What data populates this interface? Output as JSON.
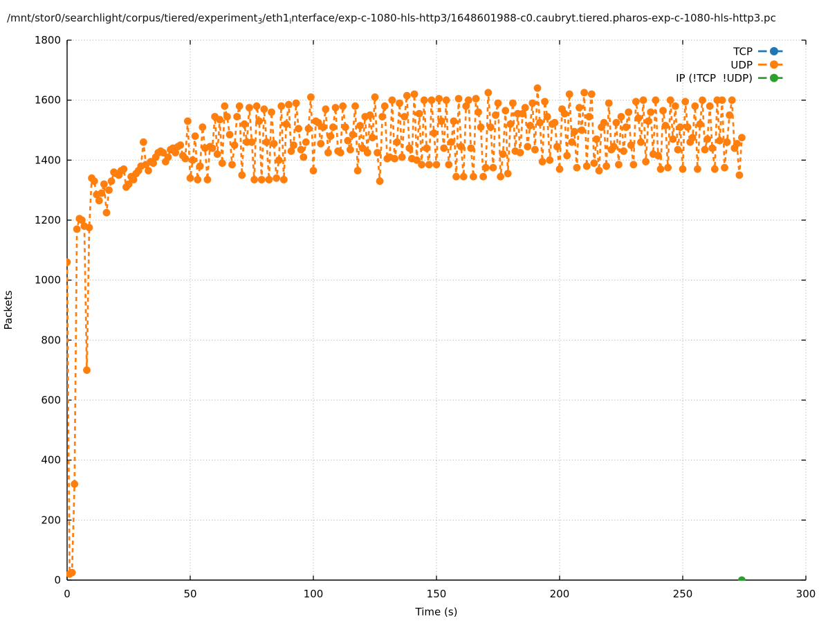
{
  "title": {
    "seg1": "/mnt/stor0/searchlight/corpus/tiered/experiment",
    "sub1": "3",
    "seg2": "/eth1",
    "sub2": "i",
    "seg3": "nterface/exp-c-1080-hls-http3/1648601988-c0.caubryt.tiered.pharos-exp-c-1080-hls-http3.pc"
  },
  "axes": {
    "xlabel": "Time (s)",
    "ylabel": "Packets",
    "xlim": [
      0,
      300
    ],
    "ylim": [
      0,
      1800
    ],
    "x_ticks": [
      0,
      50,
      100,
      150,
      200,
      250,
      300
    ],
    "y_ticks": [
      0,
      200,
      400,
      600,
      800,
      1000,
      1200,
      1400,
      1600,
      1800
    ]
  },
  "legend": [
    {
      "label": "TCP",
      "color": "#1f77b4"
    },
    {
      "label": "UDP",
      "color": "#ff7f0e"
    },
    {
      "label": "IP (!TCP  !UDP)",
      "color": "#2ca02c"
    }
  ],
  "chart_data": {
    "type": "line",
    "title": "/mnt/stor0/searchlight/corpus/tiered/experiment3/eth1interface/exp-c-1080-hls-http3/1648601988-c0.caubryt.tiered.pharos-exp-c-1080-hls-http3.pc",
    "xlabel": "Time (s)",
    "ylabel": "Packets",
    "xlim": [
      0,
      300
    ],
    "ylim": [
      0,
      1800
    ],
    "grid": true,
    "legend_position": "top-right",
    "marker": "circle",
    "linestyle": "dashed",
    "series": [
      {
        "name": "TCP",
        "color": "#1f77b4",
        "x_start": 0,
        "x_step": 1,
        "y": []
      },
      {
        "name": "UDP",
        "color": "#ff7f0e",
        "x_start": 0,
        "x_step": 1,
        "y": [
          1060,
          20,
          25,
          320,
          1170,
          1205,
          1200,
          1180,
          700,
          1175,
          1340,
          1330,
          1285,
          1265,
          1290,
          1320,
          1225,
          1300,
          1330,
          1360,
          1355,
          1350,
          1365,
          1370,
          1310,
          1320,
          1345,
          1335,
          1355,
          1365,
          1380,
          1460,
          1385,
          1365,
          1395,
          1390,
          1410,
          1425,
          1430,
          1425,
          1395,
          1410,
          1435,
          1440,
          1425,
          1445,
          1450,
          1415,
          1405,
          1530,
          1340,
          1400,
          1480,
          1335,
          1380,
          1510,
          1440,
          1335,
          1445,
          1440,
          1545,
          1420,
          1535,
          1390,
          1580,
          1545,
          1485,
          1385,
          1450,
          1545,
          1580,
          1350,
          1520,
          1460,
          1575,
          1460,
          1335,
          1580,
          1530,
          1335,
          1570,
          1460,
          1335,
          1560,
          1455,
          1340,
          1400,
          1580,
          1335,
          1520,
          1585,
          1430,
          1450,
          1590,
          1505,
          1435,
          1410,
          1460,
          1505,
          1610,
          1365,
          1530,
          1525,
          1455,
          1510,
          1570,
          1425,
          1480,
          1510,
          1575,
          1430,
          1425,
          1580,
          1510,
          1465,
          1435,
          1485,
          1580,
          1365,
          1515,
          1440,
          1545,
          1425,
          1550,
          1475,
          1610,
          1425,
          1330,
          1545,
          1580,
          1405,
          1410,
          1600,
          1405,
          1460,
          1590,
          1410,
          1545,
          1615,
          1440,
          1405,
          1620,
          1400,
          1555,
          1385,
          1600,
          1440,
          1385,
          1600,
          1490,
          1385,
          1605,
          1530,
          1440,
          1600,
          1385,
          1460,
          1530,
          1345,
          1605,
          1445,
          1345,
          1580,
          1600,
          1440,
          1345,
          1605,
          1560,
          1510,
          1345,
          1375,
          1625,
          1510,
          1375,
          1550,
          1590,
          1345,
          1420,
          1565,
          1355,
          1520,
          1590,
          1430,
          1555,
          1425,
          1555,
          1575,
          1445,
          1515,
          1590,
          1435,
          1640,
          1525,
          1395,
          1595,
          1545,
          1400,
          1520,
          1525,
          1445,
          1370,
          1570,
          1555,
          1415,
          1620,
          1460,
          1495,
          1375,
          1575,
          1500,
          1625,
          1380,
          1545,
          1620,
          1390,
          1470,
          1365,
          1510,
          1525,
          1380,
          1590,
          1435,
          1445,
          1525,
          1385,
          1545,
          1430,
          1510,
          1560,
          1450,
          1385,
          1595,
          1540,
          1460,
          1600,
          1395,
          1530,
          1560,
          1420,
          1600,
          1415,
          1370,
          1565,
          1515,
          1375,
          1600,
          1470,
          1580,
          1435,
          1510,
          1370,
          1595,
          1510,
          1460,
          1475,
          1580,
          1370,
          1520,
          1600,
          1435,
          1470,
          1580,
          1440,
          1370,
          1600,
          1465,
          1600,
          1375,
          1460,
          1550,
          1600,
          1440,
          1455,
          1350,
          1475
        ]
      },
      {
        "name": "IP (!TCP  !UDP)",
        "color": "#2ca02c",
        "points": [
          [
            274,
            0
          ]
        ]
      }
    ]
  }
}
